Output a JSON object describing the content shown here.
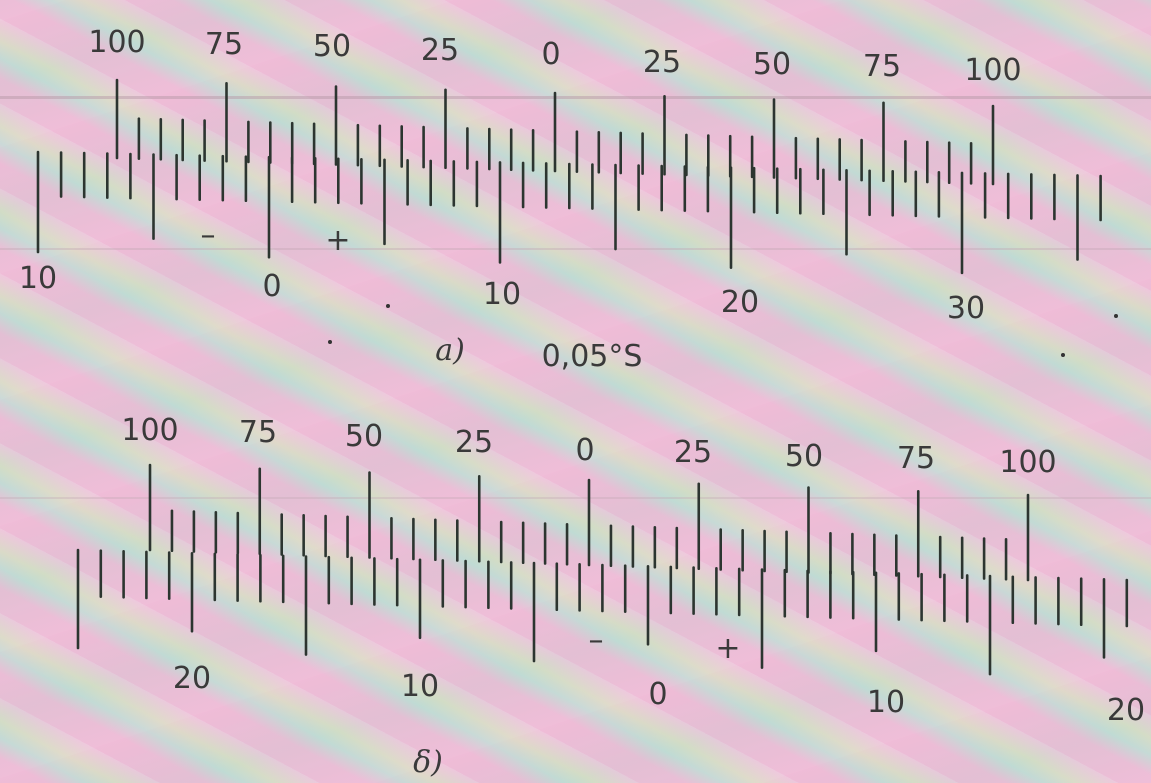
{
  "figures": [
    {
      "caption": "a)",
      "note": "0,05°S",
      "upper_labels": [
        "100",
        "75",
        "50",
        "25",
        "0",
        "25",
        "50",
        "75",
        "100"
      ],
      "lower_labels": [
        "10",
        "0",
        "10",
        "20",
        "30"
      ],
      "minus": "–",
      "plus": "+"
    },
    {
      "caption": "δ)",
      "upper_labels": [
        "100",
        "75",
        "50",
        "25",
        "0",
        "25",
        "50",
        "75",
        "100"
      ],
      "lower_labels": [
        "20",
        "10",
        "0",
        "10",
        "20"
      ],
      "minus": "–",
      "plus": "+"
    }
  ]
}
